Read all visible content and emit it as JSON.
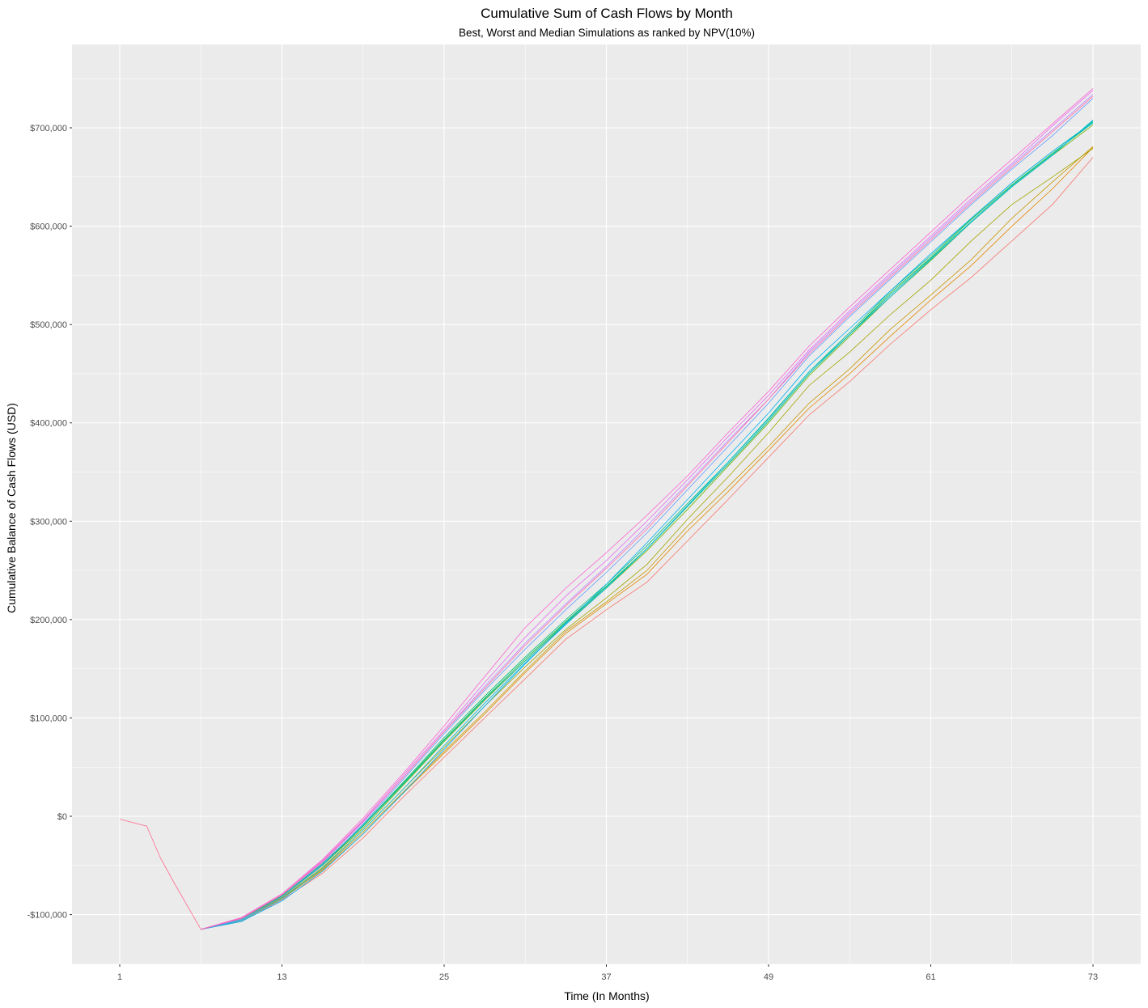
{
  "chart_data": {
    "type": "line",
    "title": "Cumulative Sum of Cash Flows by Month",
    "subtitle": "Best, Worst and Median Simulations as ranked by NPV(10%)",
    "xlabel": "Time (In Months)",
    "ylabel": "Cumulative Balance of Cash Flows (USD)",
    "xlim": [
      1,
      73
    ],
    "ylim": [
      -150000,
      750000
    ],
    "x_ticks": [
      1,
      13,
      25,
      37,
      49,
      61,
      73
    ],
    "x_tick_labels": [
      "1",
      "13",
      "25",
      "37",
      "49",
      "61",
      "73"
    ],
    "y_ticks": [
      -100000,
      0,
      100000,
      200000,
      300000,
      400000,
      500000,
      600000,
      700000
    ],
    "y_tick_labels": [
      "-$100,000",
      "$0",
      "$100,000",
      "$200,000",
      "$300,000",
      "$400,000",
      "$500,000",
      "$600,000",
      "$700,000"
    ],
    "grid": true,
    "legend": "none",
    "shared_start": [
      [
        1,
        -3000
      ],
      [
        3,
        -10000
      ],
      [
        4,
        -42000
      ],
      [
        5,
        -67000
      ],
      [
        7,
        -115000
      ]
    ],
    "x": [
      7,
      10,
      13,
      16,
      19,
      22,
      25,
      28,
      31,
      34,
      37,
      40,
      43,
      46,
      49,
      52,
      55,
      58,
      61,
      64,
      67,
      70,
      73
    ],
    "series": [
      {
        "color": "#F8766D",
        "values": [
          -115000,
          -107000,
          -85000,
          -58000,
          -22000,
          20000,
          60000,
          100000,
          140000,
          180000,
          210000,
          238000,
          280000,
          322000,
          365000,
          408000,
          442000,
          480000,
          515000,
          548000,
          585000,
          622000,
          670000
        ]
      },
      {
        "color": "#E58700",
        "values": [
          -115000,
          -106000,
          -84000,
          -55000,
          -18000,
          24000,
          64000,
          104000,
          146000,
          186000,
          216000,
          246000,
          290000,
          330000,
          372000,
          415000,
          450000,
          488000,
          525000,
          560000,
          600000,
          638000,
          680000
        ]
      },
      {
        "color": "#C99800",
        "values": [
          -115000,
          -105000,
          -83000,
          -54000,
          -16000,
          25000,
          66000,
          106000,
          148000,
          188000,
          218000,
          250000,
          295000,
          335000,
          376000,
          420000,
          455000,
          495000,
          530000,
          566000,
          608000,
          645000,
          681000
        ]
      },
      {
        "color": "#A3A500",
        "values": [
          -115000,
          -105000,
          -83000,
          -52000,
          -14000,
          28000,
          70000,
          112000,
          152000,
          190000,
          222000,
          256000,
          302000,
          345000,
          390000,
          438000,
          472000,
          510000,
          545000,
          585000,
          622000,
          650000,
          679000
        ]
      },
      {
        "color": "#6BB100",
        "values": [
          -115000,
          -104000,
          -82000,
          -50000,
          -12000,
          32000,
          76000,
          118000,
          158000,
          196000,
          232000,
          270000,
          312000,
          356000,
          400000,
          448000,
          488000,
          528000,
          565000,
          604000,
          640000,
          672000,
          703000
        ]
      },
      {
        "color": "#00BA38",
        "values": [
          -115000,
          -104000,
          -81000,
          -49000,
          -10000,
          34000,
          78000,
          120000,
          160000,
          198000,
          234000,
          272000,
          315000,
          358000,
          402000,
          450000,
          490000,
          532000,
          568000,
          607000,
          642000,
          674000,
          705000
        ]
      },
      {
        "color": "#00BF7D",
        "values": [
          -115000,
          -104000,
          -81000,
          -48000,
          -9000,
          35000,
          80000,
          122000,
          162000,
          200000,
          236000,
          275000,
          318000,
          360000,
          405000,
          452000,
          492000,
          534000,
          570000,
          608000,
          644000,
          676000,
          706000
        ]
      },
      {
        "color": "#00C0AF",
        "values": [
          -115000,
          -105000,
          -82000,
          -50000,
          -10000,
          33000,
          77000,
          119000,
          158000,
          197000,
          233000,
          272000,
          315000,
          358000,
          402000,
          450000,
          490000,
          530000,
          567000,
          605000,
          641000,
          673000,
          707000
        ]
      },
      {
        "color": "#00BCD8",
        "values": [
          -115000,
          -106000,
          -84000,
          -53000,
          -14000,
          28000,
          72000,
          115000,
          156000,
          195000,
          232000,
          272000,
          316000,
          360000,
          404000,
          452000,
          490000,
          528000,
          566000,
          604000,
          640000,
          672000,
          708000
        ]
      },
      {
        "color": "#00B0F6",
        "values": [
          -115000,
          -107000,
          -86000,
          -56000,
          -18000,
          24000,
          68000,
          112000,
          155000,
          196000,
          236000,
          278000,
          322000,
          366000,
          410000,
          458000,
          496000,
          534000,
          572000,
          608000,
          644000,
          676000,
          705000
        ]
      },
      {
        "color": "#619CFF",
        "values": [
          -115000,
          -105000,
          -82000,
          -49000,
          -8000,
          38000,
          84000,
          128000,
          170000,
          210000,
          248000,
          288000,
          332000,
          376000,
          420000,
          468000,
          508000,
          546000,
          584000,
          622000,
          658000,
          692000,
          730000
        ]
      },
      {
        "color": "#B983FF",
        "values": [
          -115000,
          -104000,
          -80000,
          -47000,
          -6000,
          40000,
          86000,
          132000,
          176000,
          216000,
          254000,
          295000,
          338000,
          382000,
          424000,
          472000,
          512000,
          550000,
          588000,
          626000,
          662000,
          698000,
          734000
        ]
      },
      {
        "color": "#E76BF3",
        "values": [
          -115000,
          -103000,
          -79000,
          -45000,
          -4000,
          42000,
          88000,
          136000,
          182000,
          224000,
          260000,
          300000,
          342000,
          386000,
          428000,
          474000,
          514000,
          552000,
          590000,
          628000,
          664000,
          702000,
          738000
        ]
      },
      {
        "color": "#FD61D1",
        "values": [
          -115000,
          -103000,
          -79000,
          -44000,
          -2000,
          44000,
          92000,
          142000,
          192000,
          232000,
          268000,
          306000,
          346000,
          390000,
          432000,
          478000,
          518000,
          556000,
          594000,
          632000,
          668000,
          704000,
          740000
        ]
      },
      {
        "color": "#FF67A4",
        "values": [
          -115000,
          -104000,
          -80000,
          -46000,
          -5000,
          40000,
          86000,
          130000,
          174000,
          214000,
          252000,
          292000,
          336000,
          380000,
          424000,
          470000,
          510000,
          548000,
          586000,
          624000,
          660000,
          696000,
          732000
        ]
      }
    ]
  }
}
